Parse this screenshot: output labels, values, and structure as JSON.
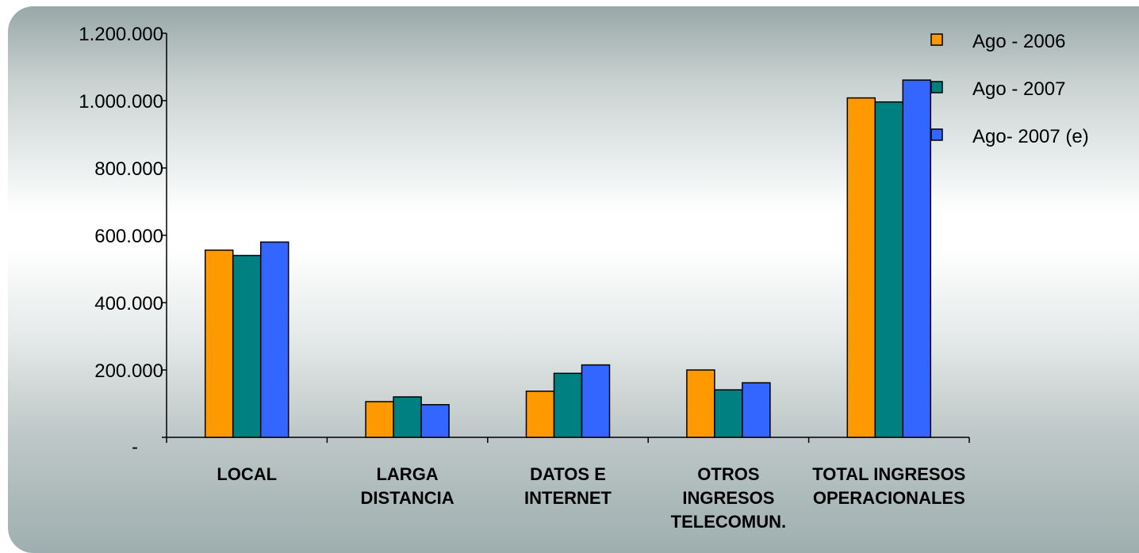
{
  "chart_data": {
    "type": "bar",
    "categories": [
      [
        "LOCAL"
      ],
      [
        "LARGA",
        "DISTANCIA"
      ],
      [
        "DATOS E",
        "INTERNET"
      ],
      [
        "OTROS",
        "INGRESOS",
        "TELECOMUN."
      ],
      [
        "TOTAL INGRESOS",
        "OPERACIONALES"
      ]
    ],
    "series": [
      {
        "name": "Ago - 2006",
        "color": "#ff9900",
        "values": [
          556000,
          106000,
          137000,
          200000,
          1008000
        ]
      },
      {
        "name": "Ago - 2007",
        "color": "#008080",
        "values": [
          540000,
          120000,
          190000,
          141000,
          996000
        ]
      },
      {
        "name": "Ago- 2007 (e)",
        "color": "#3366ff",
        "values": [
          580000,
          97000,
          215000,
          162000,
          1061000
        ]
      }
    ],
    "yticks": [
      {
        "value": 0,
        "label": "-"
      },
      {
        "value": 200000,
        "label": "200.000"
      },
      {
        "value": 400000,
        "label": "400.000"
      },
      {
        "value": 600000,
        "label": "600.000"
      },
      {
        "value": 800000,
        "label": "800.000"
      },
      {
        "value": 1000000,
        "label": "1.000.000"
      },
      {
        "value": 1200000,
        "label": "1.200.000"
      }
    ],
    "ylim": [
      0,
      1200000
    ],
    "grid": false,
    "legend_position": "top-right",
    "title": "",
    "xlabel": "",
    "ylabel": ""
  }
}
